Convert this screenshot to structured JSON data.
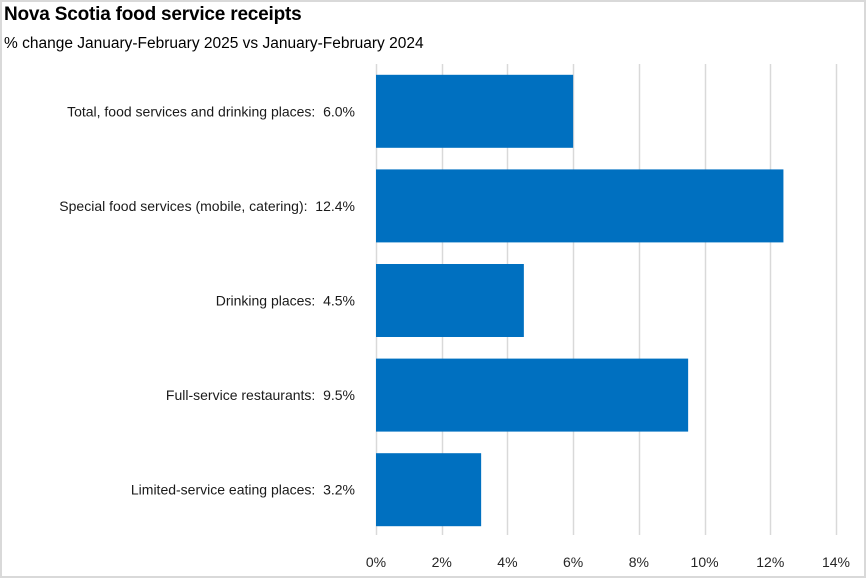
{
  "chart_data": {
    "type": "bar",
    "orientation": "horizontal",
    "title": "Nova Scotia food service receipts",
    "subtitle": "% change January-February 2025 vs January-February 2024",
    "categories": [
      "Total, food services and drinking places:  6.0%",
      "Special food services (mobile, catering):  12.4%",
      "Drinking places:  4.5%",
      "Full-service restaurants:  9.5%",
      "Limited-service eating places:  3.2%"
    ],
    "values": [
      6.0,
      12.4,
      4.5,
      9.5,
      3.2
    ],
    "xlabel": "",
    "ylabel": "",
    "xlim": [
      0,
      14
    ],
    "xticks": [
      0,
      2,
      4,
      6,
      8,
      10,
      12,
      14
    ],
    "xtick_labels": [
      "0%",
      "2%",
      "4%",
      "6%",
      "8%",
      "10%",
      "12%",
      "14%"
    ],
    "grid": "vertical",
    "legend": "none",
    "colors": {
      "bar": "#0070C0",
      "grid": "#d9d9d9"
    }
  }
}
